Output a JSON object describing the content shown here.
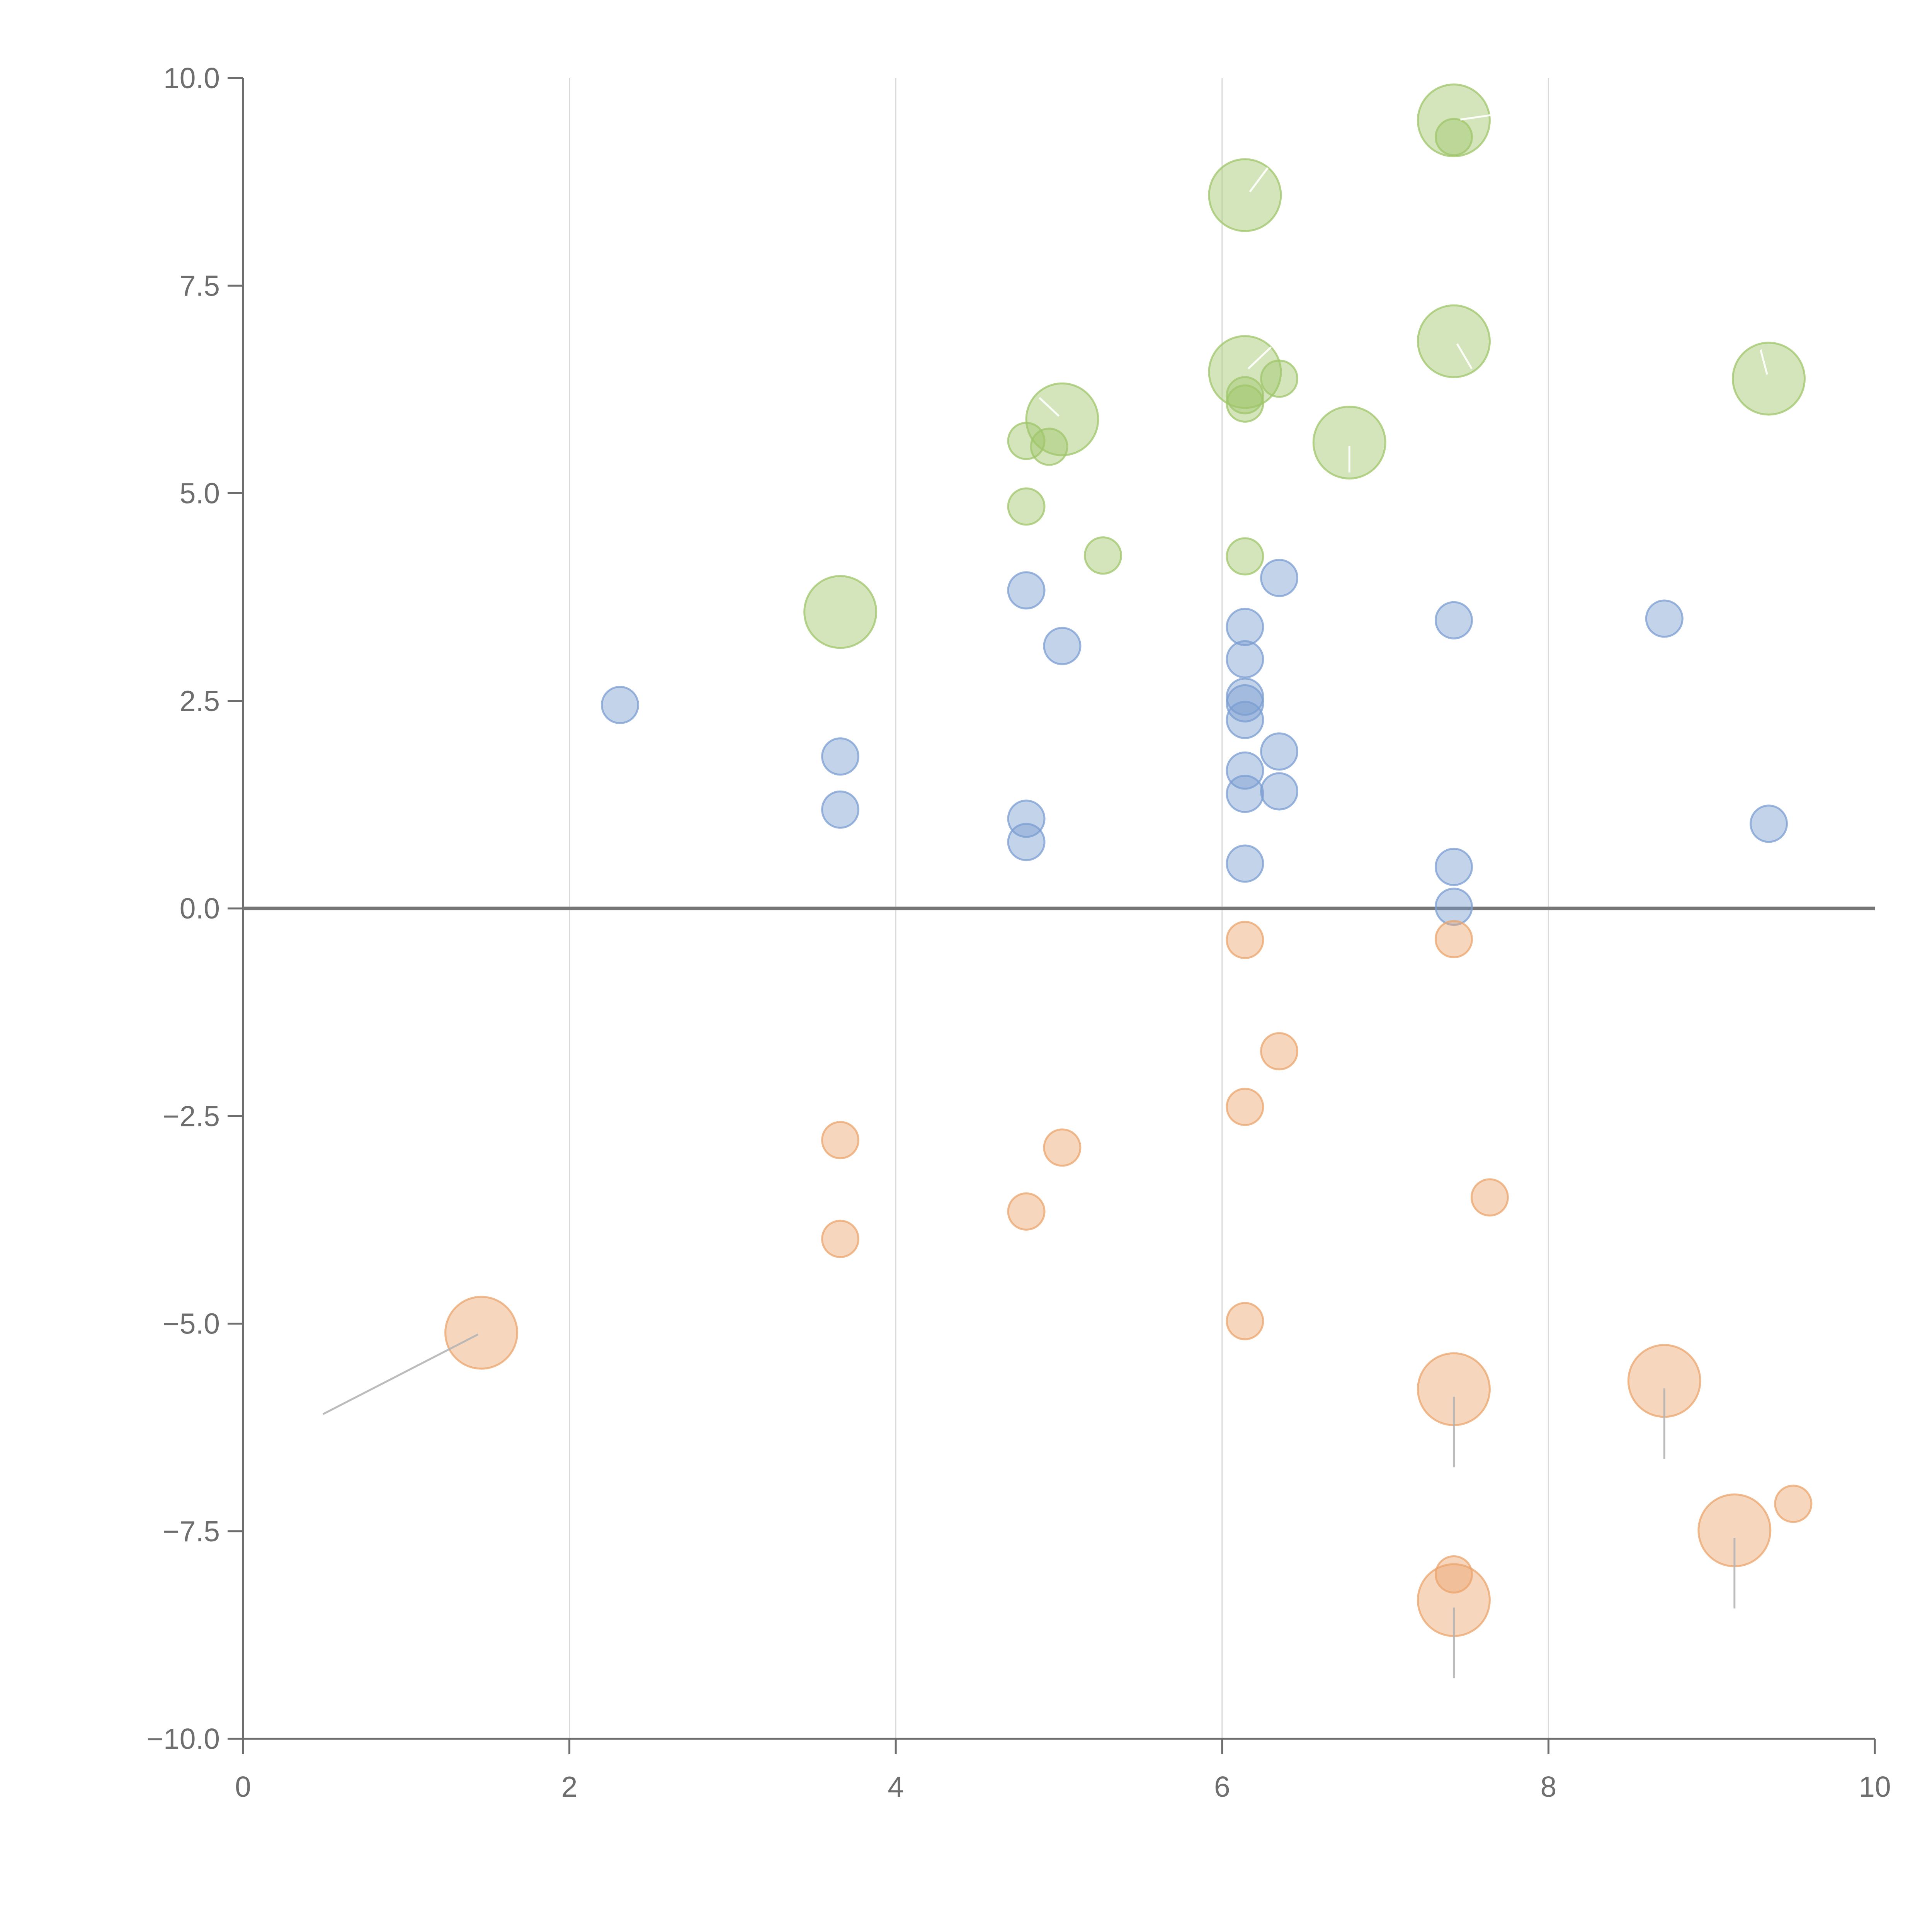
{
  "chart_data": {
    "type": "scatter",
    "title": "",
    "xlabel": "",
    "ylabel": "",
    "xlim": [
      0,
      10
    ],
    "ylim": [
      -10,
      10
    ],
    "grid": "vertical",
    "legend": "none",
    "x_ticks": [
      "0",
      "2",
      "4",
      "6",
      "8",
      "10"
    ],
    "x_tick_values": [
      0,
      2,
      4,
      6,
      8,
      10
    ],
    "y_ticks": [
      "10.0",
      "7.5",
      "5.0",
      "2.5",
      "0.0",
      "−2.5",
      "−5.0",
      "−7.5",
      "−10.0"
    ],
    "y_tick_values": [
      10,
      7.5,
      5,
      2.5,
      0,
      -2.5,
      -5,
      -7.5,
      -10
    ],
    "series": [
      {
        "name": "green",
        "color": "#9fc56a",
        "points": [
          {
            "x": 7.42,
            "y": 9.49,
            "s": 2
          },
          {
            "x": 7.42,
            "y": 9.29,
            "s": 1
          },
          {
            "x": 6.14,
            "y": 8.59,
            "s": 2
          },
          {
            "x": 7.42,
            "y": 6.83,
            "s": 2
          },
          {
            "x": 6.14,
            "y": 6.46,
            "s": 2
          },
          {
            "x": 6.35,
            "y": 6.38,
            "s": 1
          },
          {
            "x": 9.35,
            "y": 6.38,
            "s": 2
          },
          {
            "x": 6.14,
            "y": 6.18,
            "s": 1
          },
          {
            "x": 6.14,
            "y": 6.08,
            "s": 1
          },
          {
            "x": 5.02,
            "y": 5.89,
            "s": 2
          },
          {
            "x": 4.8,
            "y": 5.63,
            "s": 1
          },
          {
            "x": 4.94,
            "y": 5.56,
            "s": 1
          },
          {
            "x": 6.78,
            "y": 5.61,
            "s": 2
          },
          {
            "x": 4.8,
            "y": 4.84,
            "s": 1
          },
          {
            "x": 5.27,
            "y": 4.25,
            "s": 1
          },
          {
            "x": 6.14,
            "y": 4.24,
            "s": 1
          },
          {
            "x": 3.66,
            "y": 3.57,
            "s": 2
          }
        ]
      },
      {
        "name": "blue",
        "color": "#7b9ed1",
        "points": [
          {
            "x": 6.35,
            "y": 3.98,
            "s": 1
          },
          {
            "x": 4.8,
            "y": 3.83,
            "s": 1
          },
          {
            "x": 7.42,
            "y": 3.47,
            "s": 1
          },
          {
            "x": 8.71,
            "y": 3.49,
            "s": 1
          },
          {
            "x": 6.14,
            "y": 3.39,
            "s": 1
          },
          {
            "x": 5.02,
            "y": 3.16,
            "s": 1
          },
          {
            "x": 6.14,
            "y": 3.0,
            "s": 1
          },
          {
            "x": 6.14,
            "y": 2.55,
            "s": 1
          },
          {
            "x": 6.14,
            "y": 2.47,
            "s": 1
          },
          {
            "x": 2.31,
            "y": 2.45,
            "s": 1
          },
          {
            "x": 6.14,
            "y": 2.27,
            "s": 1
          },
          {
            "x": 6.35,
            "y": 1.89,
            "s": 1
          },
          {
            "x": 3.66,
            "y": 1.83,
            "s": 1
          },
          {
            "x": 6.14,
            "y": 1.66,
            "s": 1
          },
          {
            "x": 6.35,
            "y": 1.41,
            "s": 1
          },
          {
            "x": 6.14,
            "y": 1.38,
            "s": 1
          },
          {
            "x": 3.66,
            "y": 1.19,
            "s": 1
          },
          {
            "x": 4.8,
            "y": 1.08,
            "s": 1
          },
          {
            "x": 9.35,
            "y": 1.02,
            "s": 1
          },
          {
            "x": 4.8,
            "y": 0.8,
            "s": 1
          },
          {
            "x": 6.14,
            "y": 0.54,
            "s": 1
          },
          {
            "x": 7.42,
            "y": 0.5,
            "s": 1
          },
          {
            "x": 7.42,
            "y": 0.02,
            "s": 1
          }
        ]
      },
      {
        "name": "orange",
        "color": "#eba46c",
        "points": [
          {
            "x": 6.14,
            "y": -0.38,
            "s": 1
          },
          {
            "x": 7.42,
            "y": -0.37,
            "s": 1
          },
          {
            "x": 6.35,
            "y": -1.72,
            "s": 1
          },
          {
            "x": 6.14,
            "y": -2.39,
            "s": 1
          },
          {
            "x": 3.66,
            "y": -2.79,
            "s": 1
          },
          {
            "x": 5.02,
            "y": -2.88,
            "s": 1
          },
          {
            "x": 7.64,
            "y": -3.48,
            "s": 1
          },
          {
            "x": 4.8,
            "y": -3.65,
            "s": 1
          },
          {
            "x": 3.66,
            "y": -3.98,
            "s": 1
          },
          {
            "x": 6.14,
            "y": -4.97,
            "s": 1
          },
          {
            "x": 1.46,
            "y": -5.11,
            "s": 2
          },
          {
            "x": 8.71,
            "y": -5.69,
            "s": 2
          },
          {
            "x": 7.42,
            "y": -5.79,
            "s": 2
          },
          {
            "x": 9.5,
            "y": -7.17,
            "s": 1
          },
          {
            "x": 9.14,
            "y": -7.49,
            "s": 2
          },
          {
            "x": 7.42,
            "y": -8.02,
            "s": 1
          },
          {
            "x": 7.42,
            "y": -8.33,
            "s": 2
          }
        ]
      }
    ],
    "leader_lines": [
      {
        "x1": 0.49,
        "y1": -6.09,
        "x2": 1.44,
        "y2": -5.13,
        "color": "#b5b5b5"
      },
      {
        "x1": 7.42,
        "y1": -5.88,
        "x2": 7.42,
        "y2": -6.73,
        "color": "#b5b5b5"
      },
      {
        "x1": 8.71,
        "y1": -5.78,
        "x2": 8.71,
        "y2": -6.63,
        "color": "#b5b5b5"
      },
      {
        "x1": 9.14,
        "y1": -7.58,
        "x2": 9.14,
        "y2": -8.43,
        "color": "#b5b5b5"
      },
      {
        "x1": 7.42,
        "y1": -8.42,
        "x2": 7.42,
        "y2": -9.27,
        "color": "#b5b5b5"
      },
      {
        "x1": 7.46,
        "y1": 9.5,
        "x2": 7.67,
        "y2": 9.56,
        "color": "#ffffff"
      },
      {
        "x1": 6.17,
        "y1": 8.63,
        "x2": 6.28,
        "y2": 8.92,
        "color": "#ffffff"
      },
      {
        "x1": 7.44,
        "y1": 6.8,
        "x2": 7.53,
        "y2": 6.5,
        "color": "#ffffff"
      },
      {
        "x1": 6.16,
        "y1": 6.5,
        "x2": 6.3,
        "y2": 6.76,
        "color": "#ffffff"
      },
      {
        "x1": 9.34,
        "y1": 6.43,
        "x2": 9.3,
        "y2": 6.73,
        "color": "#ffffff"
      },
      {
        "x1": 5.0,
        "y1": 5.93,
        "x2": 4.88,
        "y2": 6.15,
        "color": "#ffffff"
      },
      {
        "x1": 6.78,
        "y1": 5.57,
        "x2": 6.78,
        "y2": 5.25,
        "color": "#ffffff"
      }
    ]
  }
}
